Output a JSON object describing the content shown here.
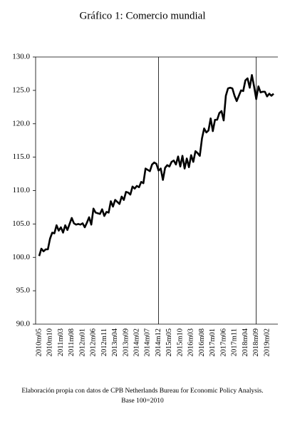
{
  "chart_data": {
    "type": "line",
    "title": "Gráfico 1: Comercio mundial",
    "notes": [
      "Elaboración propia con datos de CPB Netherlands Bureau for Economic Policy Analysis.",
      "Base 100=2010"
    ],
    "categories": [
      "2010m05",
      null,
      null,
      null,
      null,
      "2010m10",
      null,
      null,
      null,
      null,
      "2011m03",
      null,
      null,
      null,
      null,
      "2011m08",
      null,
      null,
      null,
      null,
      "2012m01",
      null,
      null,
      null,
      null,
      "2012m06",
      null,
      null,
      null,
      null,
      "2012m11",
      null,
      null,
      null,
      null,
      "2013m04",
      null,
      null,
      null,
      null,
      "2013m09",
      null,
      null,
      null,
      null,
      "2014m02",
      null,
      null,
      null,
      null,
      "2014m07",
      null,
      null,
      null,
      null,
      "2014m12",
      null,
      null,
      null,
      null,
      "2015m05",
      null,
      null,
      null,
      null,
      "2015m10",
      null,
      null,
      null,
      null,
      "2016m03",
      null,
      null,
      null,
      null,
      "2016m08",
      null,
      null,
      null,
      null,
      "2017m01",
      null,
      null,
      null,
      null,
      "2017m06",
      null,
      null,
      null,
      null,
      "2017m11",
      null,
      null,
      null,
      null,
      "2018m04",
      null,
      null,
      null,
      null,
      "2018m09",
      null,
      null,
      null,
      null,
      "2019m02",
      null,
      null,
      null
    ],
    "values": [
      100.2,
      101.3,
      100.9,
      101.2,
      101.2,
      102.8,
      103.7,
      103.6,
      104.8,
      104.0,
      104.5,
      103.7,
      104.8,
      104.1,
      105.0,
      105.9,
      105.1,
      104.9,
      105.0,
      104.9,
      105.1,
      104.5,
      105.2,
      106.0,
      104.9,
      107.3,
      106.7,
      106.6,
      106.5,
      107.2,
      106.2,
      106.8,
      106.7,
      108.4,
      107.6,
      108.6,
      108.3,
      108.0,
      109.1,
      108.6,
      109.8,
      109.7,
      109.4,
      110.6,
      110.3,
      110.7,
      110.5,
      111.3,
      111.1,
      113.3,
      113.1,
      112.9,
      113.9,
      114.2,
      114.0,
      113.0,
      113.3,
      111.6,
      113.4,
      113.8,
      113.6,
      114.3,
      114.5,
      113.9,
      115.1,
      113.6,
      115.2,
      113.3,
      114.8,
      113.5,
      115.3,
      114.3,
      115.9,
      115.6,
      115.2,
      117.8,
      119.3,
      118.7,
      119.0,
      120.8,
      118.9,
      120.6,
      120.6,
      121.6,
      121.9,
      120.5,
      124.2,
      125.3,
      125.4,
      125.3,
      124.2,
      123.4,
      124.2,
      125.0,
      124.9,
      126.5,
      126.8,
      125.4,
      127.3,
      125.6,
      123.7,
      125.6,
      124.7,
      124.8,
      124.8,
      124.1,
      124.5,
      124.2,
      124.5
    ],
    "color": "#000000",
    "vlines": [
      "2014m12",
      "2018m09"
    ],
    "ylim": [
      90,
      130
    ],
    "yticks": [
      {
        "value": 90,
        "label": "90.0"
      },
      {
        "value": 95,
        "label": "95.0"
      },
      {
        "value": 100,
        "label": "100.0"
      },
      {
        "value": 105,
        "label": "105.0"
      },
      {
        "value": 110,
        "label": "110.0"
      },
      {
        "value": 115,
        "label": "115.0"
      },
      {
        "value": 120,
        "label": "120.0"
      },
      {
        "value": 125,
        "label": "125.0"
      },
      {
        "value": 130,
        "label": "130.0"
      }
    ],
    "grid": false
  }
}
